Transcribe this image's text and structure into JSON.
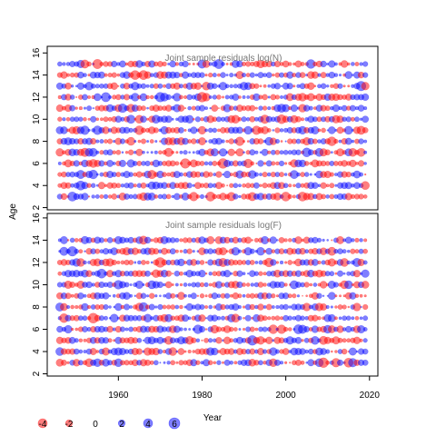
{
  "chart_data": {
    "type": "scatter",
    "description_free": true,
    "xlabel": "Year",
    "ylabel": "Age",
    "xlim": [
      1943,
      2022
    ],
    "xticks": [
      1960,
      1980,
      2000,
      2020
    ],
    "x_range_observed": [
      1946,
      2019
    ],
    "colors": {
      "positive": "#0000ff",
      "negative": "#ff0000"
    },
    "panels": [
      {
        "title": "Joint sample residuals log(N)",
        "ylim": [
          1.8,
          16.6
        ],
        "yticks": [
          2,
          4,
          6,
          8,
          10,
          12,
          14,
          16
        ],
        "ages": [
          3,
          4,
          5,
          6,
          7,
          8,
          9,
          10,
          11,
          12,
          13,
          14,
          15
        ],
        "seed": 17
      },
      {
        "title": "Joint sample residuals log(F)",
        "ylim": [
          1.8,
          16.4
        ],
        "yticks": [
          2,
          4,
          6,
          8,
          10,
          12,
          14,
          16
        ],
        "ages": [
          3,
          4,
          5,
          6,
          7,
          8,
          9,
          10,
          11,
          12,
          13,
          14
        ],
        "seed": 91
      }
    ],
    "legend": {
      "values": [
        -4,
        -2,
        0,
        2,
        4,
        6
      ],
      "labels": [
        "-4",
        "-2",
        "0",
        "2",
        "4",
        "6"
      ]
    }
  }
}
